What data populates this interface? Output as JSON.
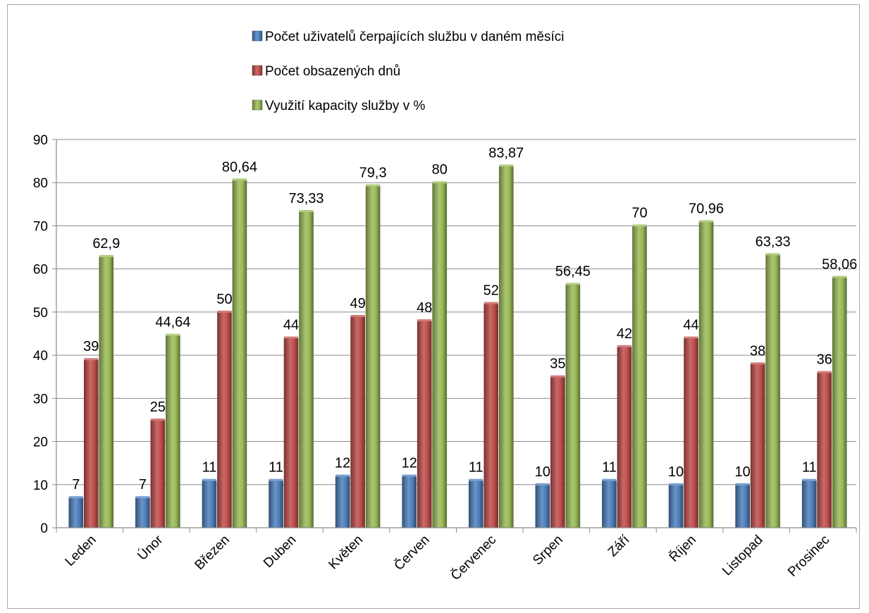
{
  "chart_data": {
    "type": "bar",
    "title": "",
    "xlabel": "",
    "ylabel": "",
    "ylim": [
      0,
      90
    ],
    "ytick_step": 10,
    "grid": true,
    "legend_position": "top",
    "categories": [
      "Leden",
      "Únor",
      "Březen",
      "Duben",
      "Květen",
      "Červen",
      "Červenec",
      "Srpen",
      "Září",
      "Říjen",
      "Listopad",
      "Prosinec"
    ],
    "data_labels": true,
    "series": [
      {
        "name": "Počet uživatelů čerpajících službu v daném měsíci",
        "color": "#4f81bd",
        "values": [
          7,
          7,
          11,
          11,
          12,
          12,
          11,
          10,
          11,
          10,
          10,
          11
        ],
        "labels": [
          "7",
          "7",
          "11",
          "11",
          "12",
          "12",
          "11",
          "10",
          "11",
          "10",
          "10",
          "11"
        ]
      },
      {
        "name": "Počet obsazených dnů",
        "color": "#c0504d",
        "values": [
          39,
          25,
          50,
          44,
          49,
          48,
          52,
          35,
          42,
          44,
          38,
          36
        ],
        "labels": [
          "39",
          "25",
          "50",
          "44",
          "49",
          "48",
          "52",
          "35",
          "42",
          "44",
          "38",
          "36"
        ]
      },
      {
        "name": "Využití kapacity služby v %",
        "color": "#9bbb59",
        "values": [
          62.9,
          44.64,
          80.64,
          73.33,
          79.3,
          80,
          83.87,
          56.45,
          70,
          70.96,
          63.33,
          58.06
        ],
        "labels": [
          "62,9",
          "44,64",
          "80,64",
          "73,33",
          "79,3",
          "80",
          "83,87",
          "56,45",
          "70",
          "70,96",
          "63,33",
          "58,06"
        ]
      }
    ]
  }
}
